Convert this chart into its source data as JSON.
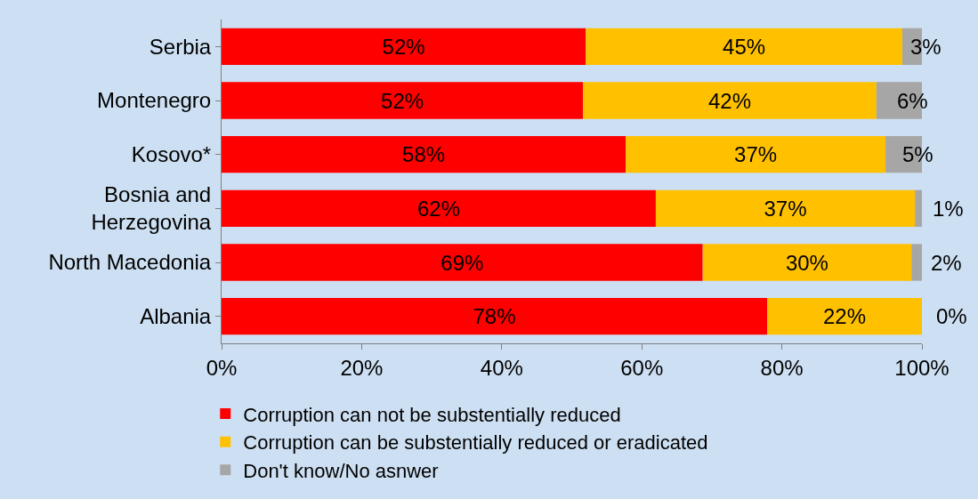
{
  "chart_data": {
    "type": "bar",
    "orientation": "horizontal",
    "stacked": true,
    "categories": [
      "Serbia",
      "Montenegro",
      "Kosovo*",
      "Bosnia and Herzegovina",
      "North Macedonia",
      "Albania"
    ],
    "series": [
      {
        "name": "Corruption can not be substentially reduced",
        "color": "#ff0000",
        "values": [
          52.0,
          51.6,
          57.7,
          62.0,
          68.7,
          77.9
        ],
        "value_labels": [
          "52%",
          "52%",
          "58%",
          "62%",
          "69%",
          "78%"
        ]
      },
      {
        "name": "Corruption can be substentially reduced or eradicated",
        "color": "#ffc000",
        "values": [
          45.2,
          41.9,
          37.1,
          37.0,
          29.8,
          22.1
        ],
        "value_labels": [
          "45%",
          "42%",
          "37%",
          "37%",
          "30%",
          "22%"
        ]
      },
      {
        "name": "Don't know/No asnwer",
        "color": "#a6a6a6",
        "values": [
          2.8,
          6.5,
          5.2,
          1.0,
          1.5,
          0
        ],
        "value_labels": [
          "3%",
          "6%",
          "5%",
          "1%",
          "2%",
          "0%"
        ]
      }
    ],
    "xlim": [
      0,
      100
    ],
    "xticks": [
      {
        "value": 0,
        "label": "0%"
      },
      {
        "value": 20,
        "label": "20%"
      },
      {
        "value": 40,
        "label": "40%"
      },
      {
        "value": 60,
        "label": "60%"
      },
      {
        "value": 80,
        "label": "80%"
      },
      {
        "value": 100,
        "label": "100%"
      }
    ],
    "grid": false,
    "legend": "bottom left"
  }
}
